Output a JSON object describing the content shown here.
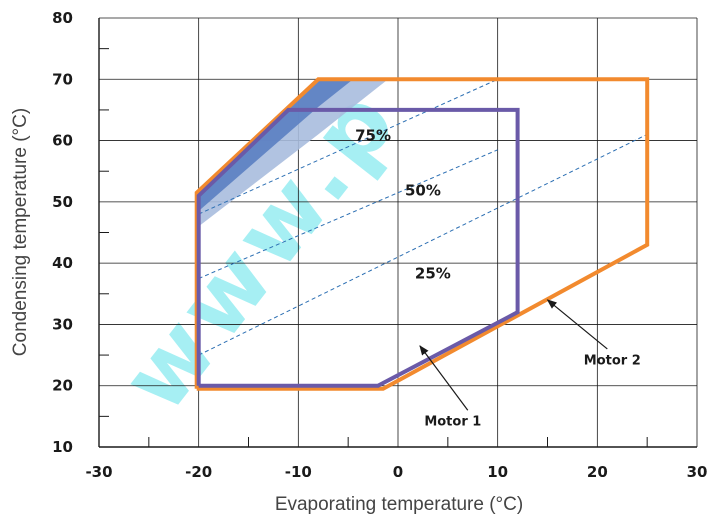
{
  "chart_data": {
    "type": "line",
    "xlabel": "Evaporating temperature (°C)",
    "ylabel": "Condensing temperature (°C)",
    "xlim": [
      -30,
      30
    ],
    "ylim": [
      10,
      80
    ],
    "x_ticks": [
      -30,
      -20,
      -10,
      0,
      10,
      20,
      30
    ],
    "y_ticks": [
      10,
      20,
      30,
      40,
      50,
      60,
      70,
      80
    ],
    "grid": true,
    "series": [
      {
        "name": "Motor 2",
        "color": "#f28a2e",
        "points": [
          [
            -20.2,
            19.5
          ],
          [
            -1.5,
            19.5
          ],
          [
            25,
            43
          ],
          [
            25,
            70
          ],
          [
            -8,
            70
          ],
          [
            -20.2,
            51.5
          ],
          [
            -20.2,
            19.5
          ]
        ]
      },
      {
        "name": "Motor 1",
        "color": "#6a5aa8",
        "points": [
          [
            -20,
            20
          ],
          [
            -2,
            20
          ],
          [
            12,
            32
          ],
          [
            12,
            65
          ],
          [
            -11,
            65
          ],
          [
            -20,
            51
          ],
          [
            -20,
            20
          ]
        ]
      }
    ],
    "load_lines": [
      {
        "label": "75%",
        "points": [
          [
            -20,
            48
          ],
          [
            10,
            70
          ]
        ],
        "label_at": [
          -2.5,
          60
        ]
      },
      {
        "label": "50%",
        "points": [
          [
            -20,
            37.5
          ],
          [
            10,
            58.5
          ]
        ],
        "label_at": [
          2.5,
          51
        ]
      },
      {
        "label": "25%",
        "points": [
          [
            -20,
            25
          ],
          [
            25,
            61
          ]
        ],
        "label_at": [
          3.5,
          37.5
        ]
      }
    ],
    "shaded_regions": [
      {
        "color": "#a9bcde",
        "points": [
          [
            -20,
            51
          ],
          [
            -20,
            46
          ],
          [
            -8,
            61
          ],
          [
            -1,
            70
          ],
          [
            -8,
            70
          ]
        ]
      },
      {
        "color": "#5b80c2",
        "points": [
          [
            -20,
            51
          ],
          [
            -20,
            48.5
          ],
          [
            -8,
            65.5
          ],
          [
            -4.5,
            70
          ],
          [
            -8,
            70
          ]
        ]
      }
    ],
    "annotations": [
      {
        "text": "Motor 1",
        "text_at": [
          5.5,
          13.5
        ],
        "arrow_from": [
          7,
          16
        ],
        "arrow_to": [
          2.2,
          26.5
        ]
      },
      {
        "text": "Motor 2",
        "text_at": [
          21.5,
          23.5
        ],
        "arrow_from": [
          21,
          26
        ],
        "arrow_to": [
          15,
          34
        ]
      }
    ]
  },
  "watermark": {
    "text": "www.p",
    "color": "#5fe3ea"
  }
}
